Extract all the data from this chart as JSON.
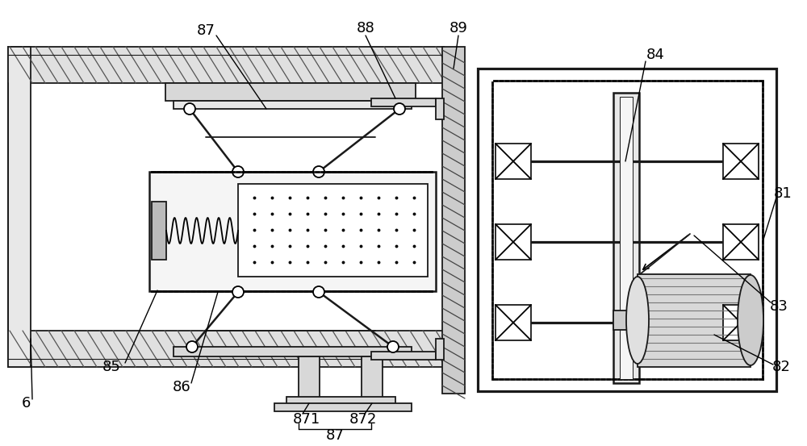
{
  "bg_color": "#ffffff",
  "lc": "#1a1a1a",
  "figsize": [
    10.0,
    5.53
  ],
  "dpi": 100
}
